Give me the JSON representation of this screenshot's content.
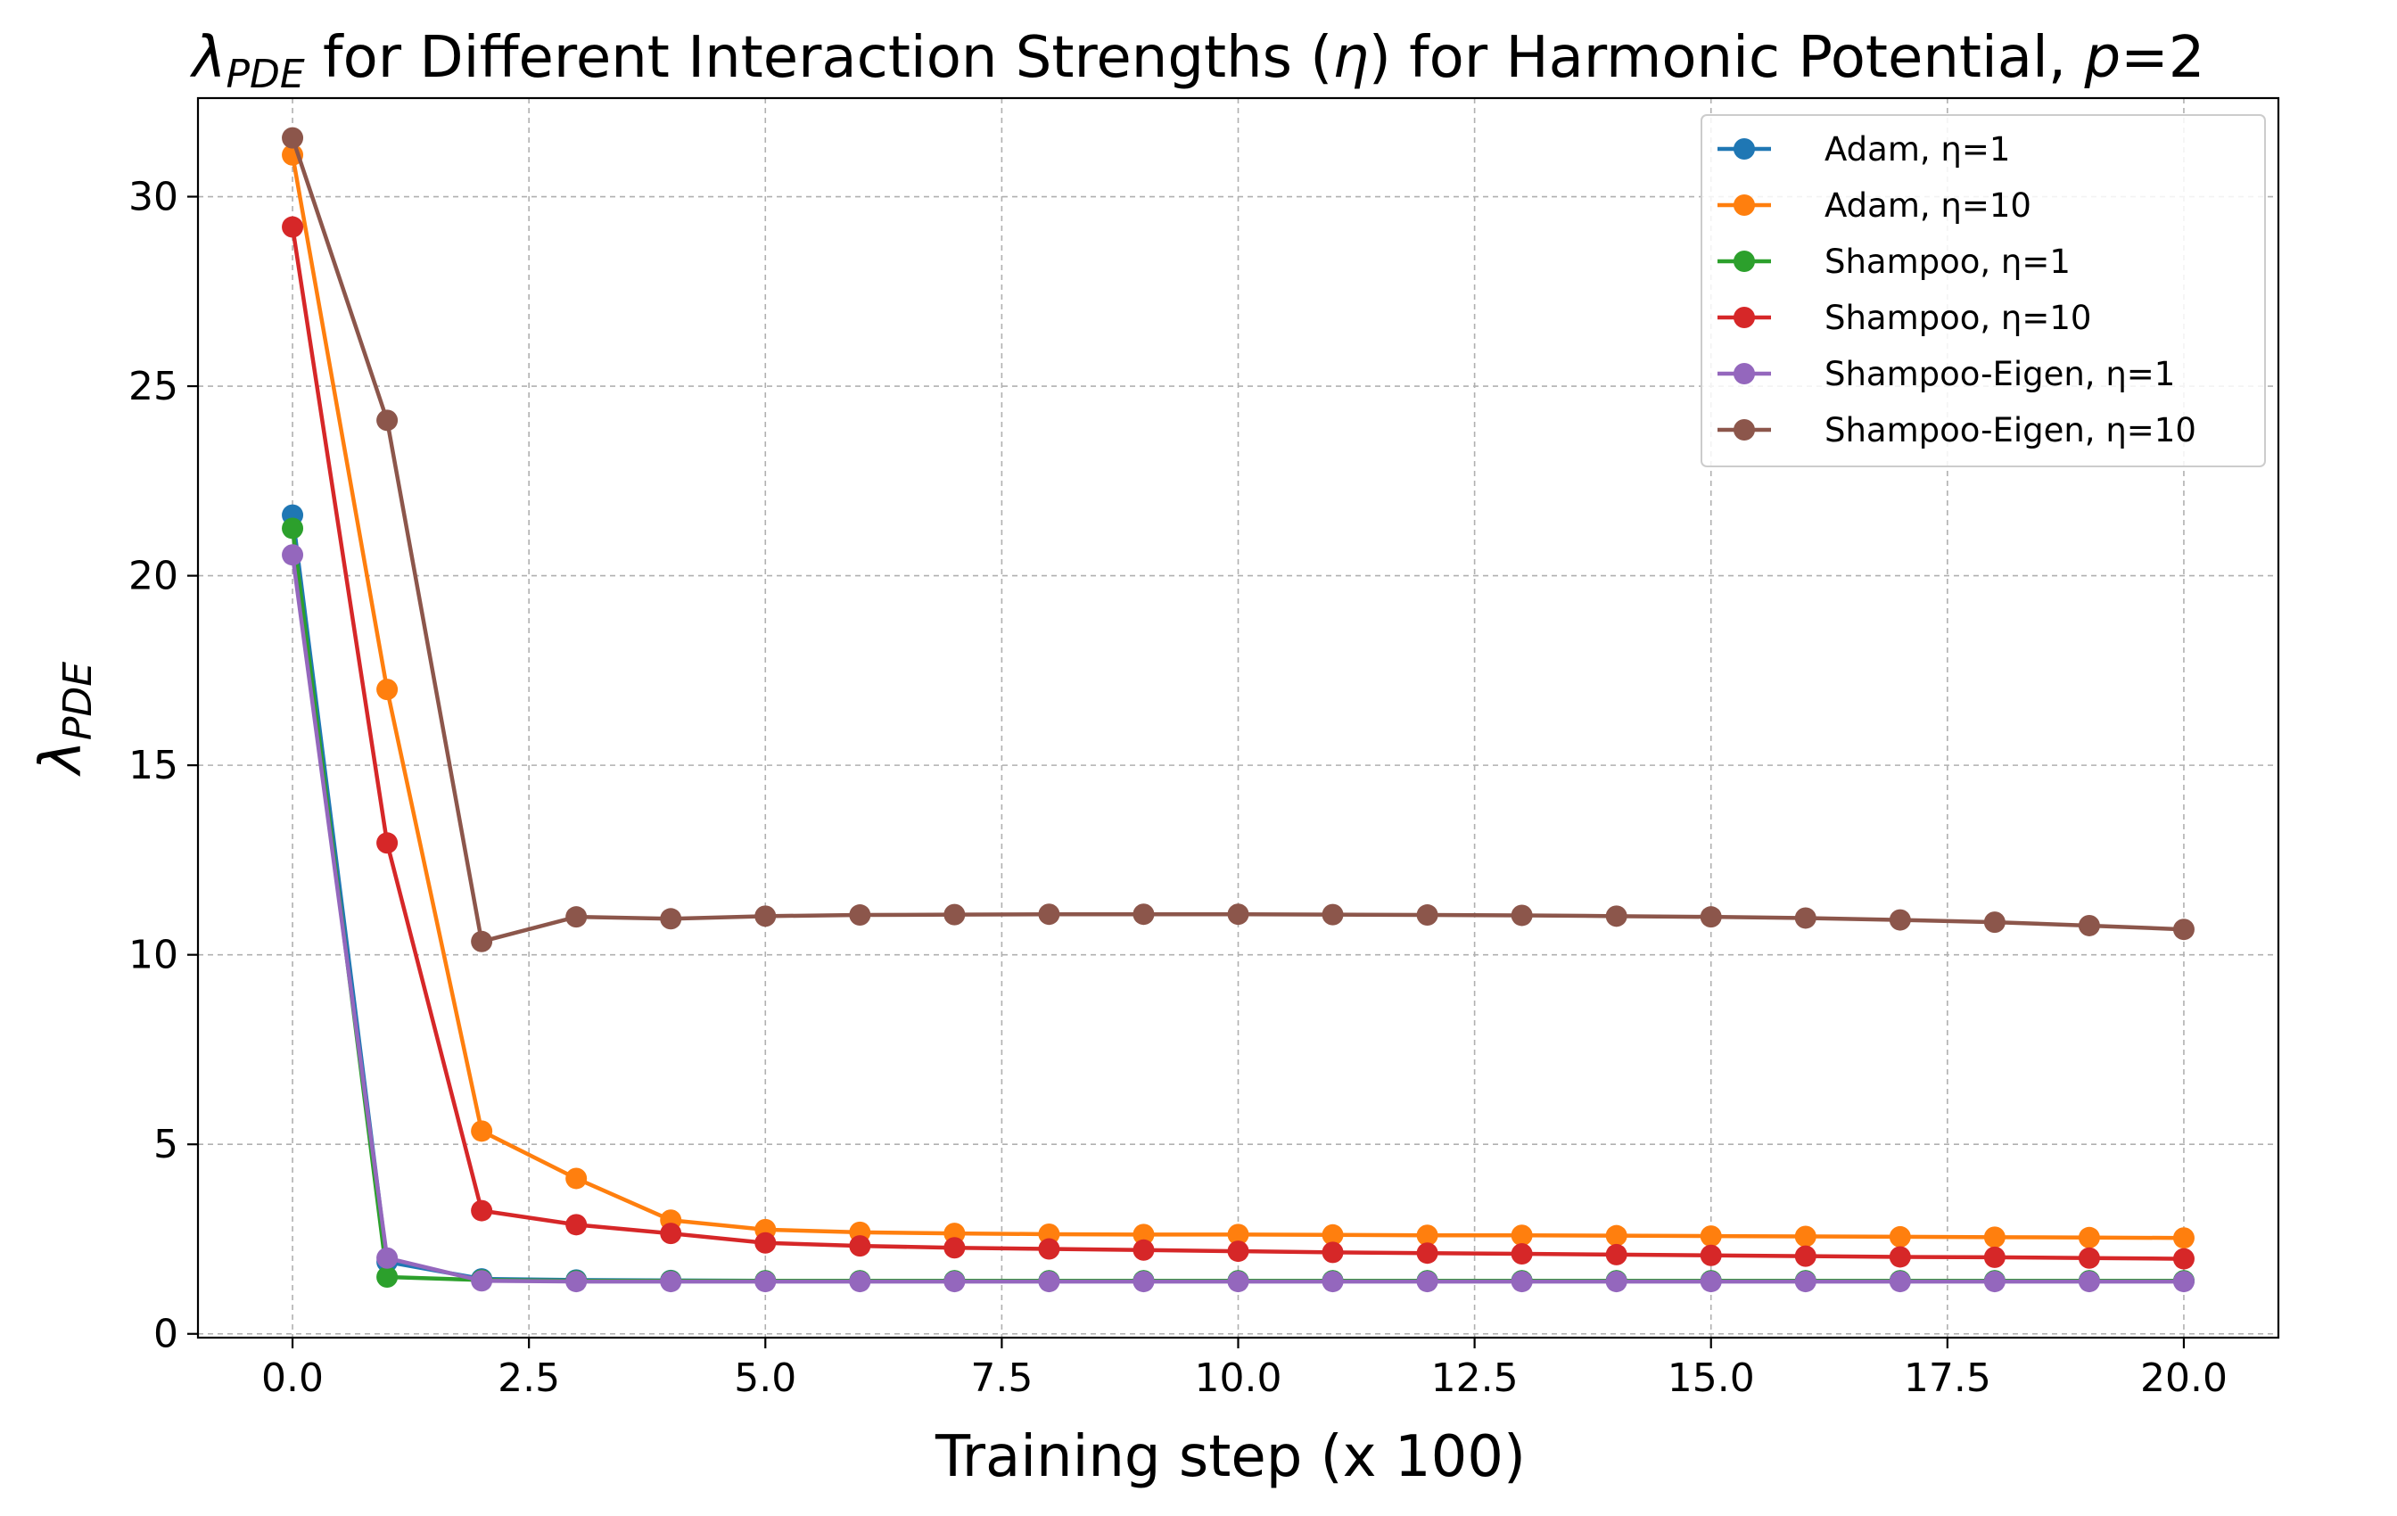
{
  "chart_data": {
    "type": "line",
    "title": "λPDE for Different Interaction Strengths (η) for Harmonic Potential, p=2",
    "title_parts": {
      "symbol": "λ",
      "symbol_subscript": "PDE",
      "rest": " for Different Interaction Strengths (",
      "eta": "η",
      "middle": ") for Harmonic Potential, ",
      "p": "p",
      "tail": "=2"
    },
    "xlabel": "Training step (x 100)",
    "ylabel": "λPDE",
    "ylabel_parts": {
      "symbol": "λ",
      "subscript": "PDE"
    },
    "xlim": [
      -1,
      21
    ],
    "ylim": [
      -0.1,
      32.6
    ],
    "x_ticks": [
      0,
      2.5,
      5,
      7.5,
      10,
      12.5,
      15,
      17.5,
      20
    ],
    "x_tick_labels": [
      "0.0",
      "2.5",
      "5.0",
      "7.5",
      "10.0",
      "12.5",
      "15.0",
      "17.5",
      "20.0"
    ],
    "y_ticks": [
      0,
      5,
      10,
      15,
      20,
      25,
      30
    ],
    "y_tick_labels": [
      "0",
      "5",
      "10",
      "15",
      "20",
      "25",
      "30"
    ],
    "grid": true,
    "legend_position": "top-right",
    "x": [
      0,
      1,
      2,
      3,
      4,
      5,
      6,
      7,
      8,
      9,
      10,
      11,
      12,
      13,
      14,
      15,
      16,
      17,
      18,
      19,
      20
    ],
    "series": [
      {
        "name": "Adam, η=1",
        "color": "#1f77b4",
        "values": [
          21.6,
          1.9,
          1.45,
          1.42,
          1.41,
          1.4,
          1.4,
          1.4,
          1.4,
          1.4,
          1.4,
          1.4,
          1.4,
          1.4,
          1.4,
          1.4,
          1.4,
          1.4,
          1.4,
          1.4,
          1.4
        ]
      },
      {
        "name": "Adam, η=10",
        "color": "#ff7f0e",
        "values": [
          31.1,
          17.0,
          5.35,
          4.1,
          3.0,
          2.75,
          2.68,
          2.65,
          2.63,
          2.62,
          2.62,
          2.61,
          2.6,
          2.6,
          2.59,
          2.58,
          2.57,
          2.56,
          2.55,
          2.54,
          2.53
        ]
      },
      {
        "name": "Shampoo, η=1",
        "color": "#2ca02c",
        "values": [
          21.25,
          1.5,
          1.42,
          1.4,
          1.4,
          1.4,
          1.4,
          1.4,
          1.4,
          1.4,
          1.4,
          1.4,
          1.4,
          1.4,
          1.4,
          1.4,
          1.4,
          1.4,
          1.4,
          1.4,
          1.4
        ]
      },
      {
        "name": "Shampoo, η=10",
        "color": "#d62728",
        "values": [
          29.2,
          12.95,
          3.25,
          2.88,
          2.65,
          2.4,
          2.32,
          2.27,
          2.24,
          2.21,
          2.18,
          2.15,
          2.13,
          2.11,
          2.09,
          2.07,
          2.05,
          2.03,
          2.02,
          2.0,
          1.98
        ]
      },
      {
        "name": "Shampoo-Eigen, η=1",
        "color": "#9467bd",
        "values": [
          20.55,
          2.0,
          1.4,
          1.38,
          1.38,
          1.38,
          1.38,
          1.38,
          1.38,
          1.38,
          1.38,
          1.38,
          1.38,
          1.38,
          1.38,
          1.38,
          1.38,
          1.38,
          1.38,
          1.38,
          1.38
        ]
      },
      {
        "name": "Shampoo-Eigen, η=10",
        "color": "#8c564b",
        "values": [
          31.55,
          24.1,
          10.35,
          11.0,
          10.95,
          11.02,
          11.05,
          11.06,
          11.07,
          11.07,
          11.07,
          11.06,
          11.05,
          11.04,
          11.02,
          11.0,
          10.97,
          10.92,
          10.86,
          10.77,
          10.67
        ]
      }
    ]
  }
}
